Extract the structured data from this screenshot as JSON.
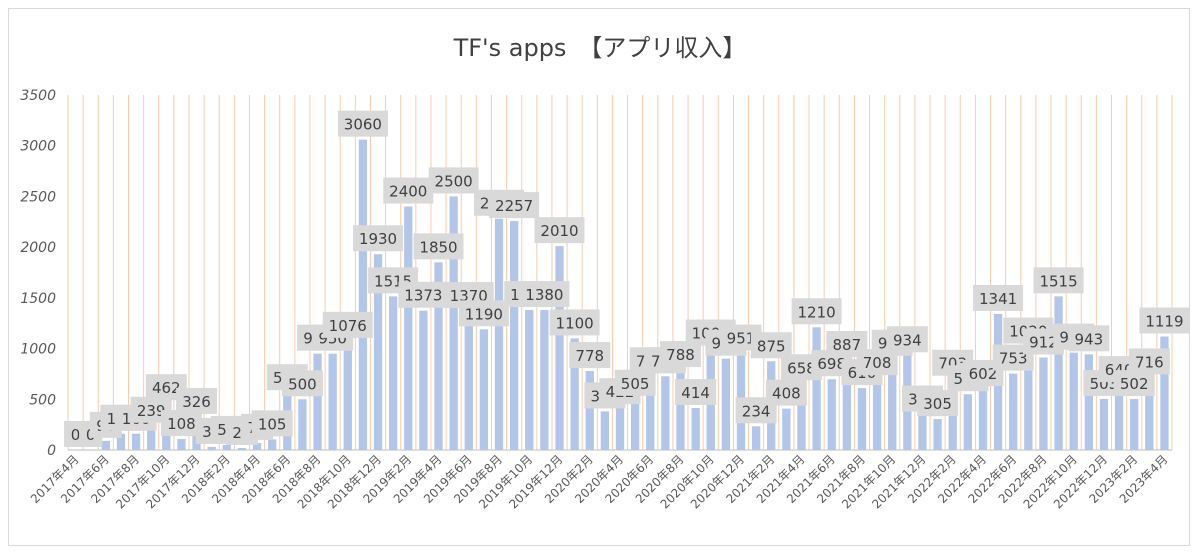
{
  "chart_data": {
    "type": "bar",
    "title": "TF's apps　【アプリ収入】",
    "xlabel": "",
    "ylabel": "",
    "ylim": [
      0,
      3500
    ],
    "yticks": [
      0,
      500,
      1000,
      1500,
      2000,
      2500,
      3000,
      3500
    ],
    "grid": "vertical",
    "categories": [
      "2017年4月",
      "2017年5月",
      "2017年6月",
      "2017年7月",
      "2017年8月",
      "2017年9月",
      "2017年10月",
      "2017年11月",
      "2017年12月",
      "2018年1月",
      "2018年2月",
      "2018年3月",
      "2018年4月",
      "2018年5月",
      "2018年6月",
      "2018年7月",
      "2018年8月",
      "2018年9月",
      "2018年10月",
      "2018年11月",
      "2018年12月",
      "2019年1月",
      "2019年2月",
      "2019年3月",
      "2019年4月",
      "2019年5月",
      "2019年6月",
      "2019年7月",
      "2019年8月",
      "2019年9月",
      "2019年10月",
      "2019年11月",
      "2019年12月",
      "2020年1月",
      "2020年2月",
      "2020年3月",
      "2020年4月",
      "2020年5月",
      "2020年6月",
      "2020年7月",
      "2020年8月",
      "2020年9月",
      "2020年10月",
      "2020年11月",
      "2020年12月",
      "2021年1月",
      "2021年2月",
      "2021年3月",
      "2021年4月",
      "2021年5月",
      "2021年6月",
      "2021年7月",
      "2021年8月",
      "2021年9月",
      "2021年10月",
      "2021年11月",
      "2021年12月",
      "2022年1月",
      "2022年2月",
      "2022年3月",
      "2022年4月",
      "2022年5月",
      "2022年6月",
      "2022年7月",
      "2022年8月",
      "2022年9月",
      "2022年10月",
      "2022年11月",
      "2022年12月",
      "2023年1月",
      "2023年2月",
      "2023年3月",
      "2023年4月"
    ],
    "x_tick_labels": [
      "2017年4月",
      "2017年6月",
      "2017年8月",
      "2017年10月",
      "2017年12月",
      "2018年2月",
      "2018年4月",
      "2018年6月",
      "2018年8月",
      "2018年10月",
      "2018年12月",
      "2019年2月",
      "2019年4月",
      "2019年6月",
      "2019年8月",
      "2019年10月",
      "2019年12月",
      "2020年2月",
      "2020年4月",
      "2020年6月",
      "2020年8月",
      "2020年10月",
      "2020年12月",
      "2021年2月",
      "2021年4月",
      "2021年6月",
      "2021年8月",
      "2021年10月",
      "2021年12月",
      "2022年2月",
      "2022年4月",
      "2022年6月",
      "2022年8月",
      "2022年10月",
      "2022年12月",
      "2023年2月",
      "2023年4月"
    ],
    "values": [
      0,
      0,
      90,
      160,
      160,
      239,
      462,
      108,
      326,
      30,
      50,
      20,
      70,
      105,
      560,
      500,
      950,
      950,
      1076,
      3060,
      1930,
      1515,
      2400,
      1373,
      1850,
      2500,
      1370,
      1190,
      2280,
      2257,
      1380,
      1380,
      2010,
      1100,
      778,
      380,
      422,
      505,
      727,
      727,
      788,
      414,
      1000,
      900,
      951,
      234,
      875,
      408,
      658,
      1210,
      698,
      887,
      610,
      708,
      900,
      934,
      350,
      305,
      703,
      550,
      602,
      1341,
      753,
      1020,
      912,
      1515,
      960,
      943,
      503,
      640,
      502,
      716,
      1119
    ],
    "bar_color": "#b4c6e7",
    "grid_color": "#f8cbad",
    "label_bg": "#d9d9d9"
  }
}
